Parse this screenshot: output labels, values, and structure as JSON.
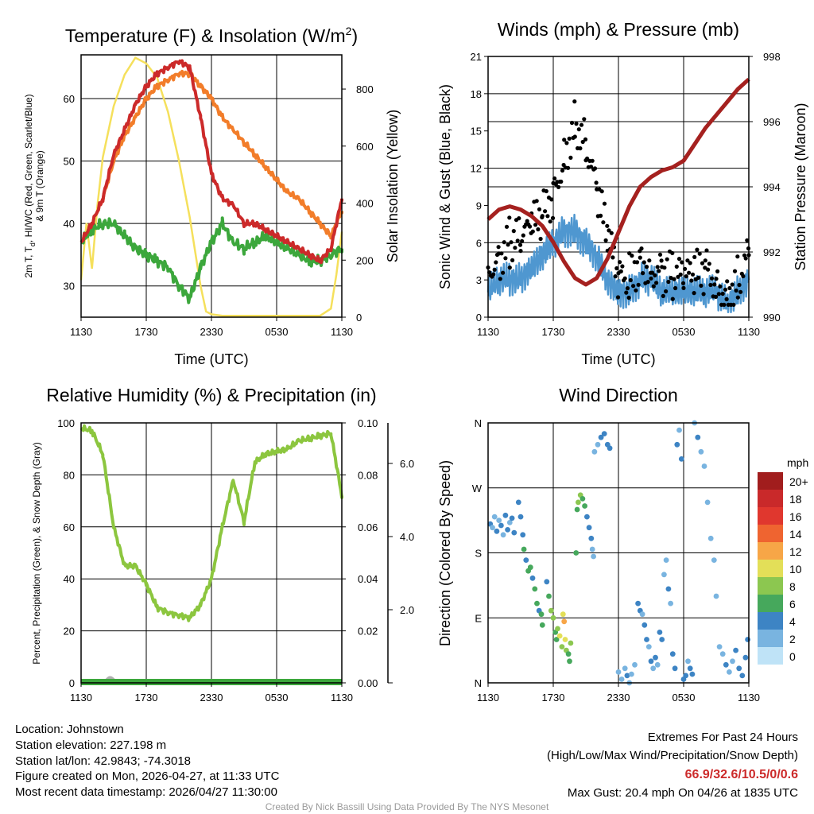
{
  "colors": {
    "temp": "#cc2a2a",
    "heat_index": "#cc2a2a",
    "dewpoint": "#3ca73c",
    "temp9m": "#f27d2a",
    "solar": "#f5e05c",
    "wind": "#4f97d0",
    "gust": "#000000",
    "pressure": "#a5211f",
    "rh": "#8cc63f",
    "precip": "#3ca73c",
    "snow": "#b0b0b0"
  },
  "chart_data": [
    {
      "id": "temperature",
      "type": "line",
      "title": "Temperature (F) & Insolation (W/m",
      "title_sup": "2",
      "title_end": ")",
      "xlabel": "Time (UTC)",
      "ylabel_left_1": "2m T, T",
      "ylabel_left_sub": "d",
      "ylabel_left_2": ", HI/WC (Red, Green, Scarlet/Blue)",
      "ylabel_left_3": "& 9m T (Orange)",
      "ylabel_right": "Solar Insolation (Yellow)",
      "xticks": [
        "1130",
        "1730",
        "2330",
        "0530",
        "1130"
      ],
      "xtick_hours": [
        0,
        6,
        12,
        18,
        24
      ],
      "yticks_left": [
        30,
        40,
        50,
        60
      ],
      "yticks_right": [
        0,
        200,
        400,
        600,
        800
      ],
      "ylim_left": [
        25,
        67
      ],
      "ylim_right": [
        0,
        920
      ],
      "series": [
        {
          "name": "2m T",
          "x": [
            0,
            1,
            2,
            3,
            4,
            5,
            6,
            7,
            8,
            9,
            10,
            11,
            12,
            13,
            14,
            15,
            16,
            17,
            18,
            19,
            20,
            21,
            22,
            23,
            24
          ],
          "values": [
            37,
            40,
            44,
            51,
            55,
            59,
            62,
            64,
            65,
            66,
            65,
            57,
            48,
            44,
            43,
            40,
            40,
            39,
            38,
            37,
            36,
            35,
            34,
            36,
            44
          ]
        },
        {
          "name": "Td",
          "x": [
            0,
            1,
            2,
            3,
            4,
            5,
            6,
            7,
            8,
            9,
            10,
            11,
            12,
            13,
            14,
            15,
            16,
            17,
            18,
            19,
            20,
            21,
            22,
            23,
            24
          ],
          "values": [
            37,
            39,
            40,
            40,
            38,
            36,
            35,
            34,
            33,
            30,
            28,
            33,
            37,
            40,
            37,
            36,
            37,
            38,
            37,
            36,
            35,
            34,
            34,
            35,
            36
          ]
        },
        {
          "name": "9m T",
          "x": [
            0,
            1,
            2,
            3,
            4,
            5,
            6,
            7,
            8,
            9,
            10,
            11,
            12,
            13,
            14,
            15,
            16,
            17,
            18,
            19,
            20,
            21,
            22,
            23,
            24
          ],
          "values": [
            37,
            40,
            44,
            50,
            54,
            57,
            60,
            62,
            63,
            64,
            64,
            62,
            60,
            57,
            55,
            53,
            51,
            49,
            47,
            45,
            44,
            42,
            40,
            38,
            42
          ]
        },
        {
          "name": "Solar",
          "x": [
            0,
            0.5,
            1,
            1.5,
            2,
            3,
            4,
            5,
            6,
            7,
            8,
            9,
            10,
            11,
            11.5,
            12,
            13,
            14,
            15,
            16,
            17,
            18,
            19,
            20,
            21,
            22,
            23,
            23.5,
            24
          ],
          "values": [
            130,
            330,
            170,
            390,
            560,
            740,
            850,
            910,
            890,
            840,
            720,
            550,
            350,
            110,
            20,
            10,
            5,
            5,
            5,
            5,
            5,
            5,
            5,
            5,
            5,
            5,
            30,
            150,
            300
          ]
        }
      ]
    },
    {
      "id": "winds",
      "type": "line",
      "title": "Winds (mph) & Pressure (mb)",
      "xlabel": "Time (UTC)",
      "ylabel_left": "Sonic Wind & Gust (Blue, Black)",
      "ylabel_right": "Station Pressure (Maroon)",
      "xticks": [
        "1130",
        "1730",
        "2330",
        "0530",
        "1130"
      ],
      "yticks_left": [
        0,
        3,
        6,
        9,
        12,
        15,
        18,
        21
      ],
      "yticks_right": [
        990,
        992,
        994,
        996,
        998
      ],
      "ylim_left": [
        0,
        21
      ],
      "ylim_right": [
        990,
        998
      ],
      "series": [
        {
          "name": "Sonic Wind",
          "x": [
            0,
            1,
            2,
            3,
            4,
            5,
            6,
            7,
            8,
            9,
            10,
            11,
            12,
            13,
            14,
            15,
            16,
            17,
            18,
            19,
            20,
            21,
            22,
            23,
            24
          ],
          "values": [
            2,
            3,
            3,
            3,
            4,
            5,
            6,
            7,
            7,
            6,
            5,
            3,
            2,
            2,
            3,
            3,
            2,
            2,
            2,
            2,
            2,
            2,
            1,
            2,
            3
          ]
        },
        {
          "name": "Gust",
          "x": [
            0,
            1,
            2,
            3,
            4,
            5,
            6,
            7,
            8,
            9,
            10,
            11,
            12,
            13,
            14,
            15,
            16,
            17,
            18,
            19,
            20,
            21,
            22,
            23,
            24
          ],
          "values": [
            4,
            5,
            6,
            6,
            7,
            8,
            10,
            13,
            16,
            14,
            10,
            6,
            3,
            3,
            5,
            4,
            4,
            3,
            3,
            3,
            4,
            3,
            2,
            3,
            5
          ]
        },
        {
          "name": "Pressure",
          "x": [
            0,
            1,
            2,
            3,
            4,
            5,
            6,
            7,
            8,
            9,
            10,
            11,
            12,
            13,
            14,
            15,
            16,
            17,
            18,
            19,
            20,
            21,
            22,
            23,
            24
          ],
          "values": [
            993.0,
            993.3,
            993.4,
            993.3,
            993.1,
            992.8,
            992.3,
            991.7,
            991.2,
            991.0,
            991.2,
            991.8,
            992.6,
            993.4,
            994.0,
            994.3,
            994.5,
            994.6,
            994.8,
            995.3,
            995.8,
            996.2,
            996.6,
            997.0,
            997.3
          ]
        }
      ]
    },
    {
      "id": "humidity",
      "type": "line",
      "title": "Relative Humidity (%) & Precipitation (in)",
      "xlabel": "",
      "ylabel_left": "Percent, Precipitation (Green), & Snow Depth (Gray)",
      "xticks": [
        "1130",
        "1730",
        "2330",
        "0530",
        "1130"
      ],
      "yticks_left": [
        0,
        20,
        40,
        60,
        80,
        100
      ],
      "yticks_precip": [
        "0.00",
        "0.02",
        "0.04",
        "0.06",
        "0.08",
        "0.10"
      ],
      "yticks_snow": [
        "2.0",
        "4.0",
        "6.0"
      ],
      "ylim_left": [
        0,
        100
      ],
      "series": [
        {
          "name": "RH",
          "x": [
            0,
            1,
            2,
            3,
            4,
            5,
            6,
            7,
            8,
            9,
            10,
            11,
            12,
            13,
            14,
            15,
            16,
            17,
            18,
            19,
            20,
            21,
            22,
            23,
            24
          ],
          "values": [
            98,
            97,
            88,
            60,
            45,
            45,
            38,
            29,
            27,
            26,
            25,
            30,
            40,
            60,
            78,
            62,
            85,
            88,
            89,
            90,
            93,
            94,
            95,
            96,
            72
          ]
        },
        {
          "name": "Precipitation",
          "x": [
            0,
            24
          ],
          "values": [
            0,
            0
          ]
        },
        {
          "name": "Snow Depth",
          "x": [
            0,
            24
          ],
          "values": [
            0,
            0
          ]
        }
      ]
    },
    {
      "id": "wind_direction",
      "type": "scatter",
      "title": "Wind Direction",
      "ylabel_left": "Direction (Colored By Speed)",
      "xticks": [
        "1130",
        "1730",
        "2330",
        "0530",
        "1130"
      ],
      "yticks_left": [
        "N",
        "E",
        "S",
        "W",
        "N"
      ],
      "ylim_left": [
        0,
        360
      ],
      "legend_title": "mph",
      "legend_labels": [
        "20+",
        "18",
        "16",
        "14",
        "12",
        "10",
        "8",
        "6",
        "4",
        "2",
        "0"
      ],
      "legend_colors": [
        "#a11d1d",
        "#c9292a",
        "#e0372e",
        "#ef6430",
        "#f7a647",
        "#e3df58",
        "#8cc750",
        "#46a85c",
        "#3d84c4",
        "#79b4e0",
        "#bfe3f7"
      ],
      "points": [
        [
          0.2,
          220,
          3
        ],
        [
          0.4,
          215,
          2
        ],
        [
          0.6,
          230,
          2
        ],
        [
          0.8,
          210,
          3
        ],
        [
          1.0,
          225,
          2
        ],
        [
          1.2,
          218,
          3
        ],
        [
          1.4,
          205,
          2
        ],
        [
          1.6,
          232,
          4
        ],
        [
          1.8,
          212,
          3
        ],
        [
          2.0,
          222,
          2
        ],
        [
          2.2,
          228,
          4
        ],
        [
          2.4,
          208,
          3
        ],
        [
          2.8,
          250,
          4
        ],
        [
          3.0,
          230,
          3
        ],
        [
          3.2,
          205,
          4
        ],
        [
          3.3,
          185,
          5
        ],
        [
          3.5,
          170,
          4
        ],
        [
          3.7,
          155,
          5
        ],
        [
          3.9,
          160,
          6
        ],
        [
          4.1,
          145,
          4
        ],
        [
          4.3,
          130,
          5
        ],
        [
          4.5,
          110,
          6
        ],
        [
          4.7,
          100,
          3
        ],
        [
          4.9,
          95,
          6
        ],
        [
          5.0,
          80,
          5
        ],
        [
          5.4,
          140,
          4
        ],
        [
          5.6,
          120,
          6
        ],
        [
          5.8,
          100,
          7
        ],
        [
          6.0,
          90,
          8
        ],
        [
          6.2,
          70,
          6
        ],
        [
          6.3,
          60,
          5
        ],
        [
          6.4,
          75,
          7
        ],
        [
          6.6,
          65,
          9
        ],
        [
          6.8,
          50,
          8
        ],
        [
          6.9,
          95,
          10
        ],
        [
          7.0,
          85,
          11
        ],
        [
          7.1,
          60,
          9
        ],
        [
          7.2,
          45,
          7
        ],
        [
          7.4,
          40,
          6
        ],
        [
          7.5,
          30,
          6
        ],
        [
          7.6,
          55,
          8
        ],
        [
          8.1,
          180,
          5
        ],
        [
          8.2,
          240,
          6
        ],
        [
          8.3,
          250,
          7
        ],
        [
          8.5,
          260,
          8
        ],
        [
          8.7,
          255,
          6
        ],
        [
          8.9,
          245,
          5
        ],
        [
          9.1,
          230,
          4
        ],
        [
          9.3,
          215,
          3
        ],
        [
          9.5,
          200,
          3
        ],
        [
          9.6,
          185,
          2
        ],
        [
          9.7,
          175,
          2
        ],
        [
          9.8,
          320,
          2
        ],
        [
          10.1,
          330,
          2
        ],
        [
          10.4,
          340,
          3
        ],
        [
          10.7,
          345,
          3
        ],
        [
          11.0,
          330,
          4
        ],
        [
          11.2,
          325,
          3
        ],
        [
          12.0,
          15,
          2
        ],
        [
          12.3,
          5,
          2
        ],
        [
          12.6,
          20,
          2
        ],
        [
          12.8,
          10,
          3
        ],
        [
          13.0,
          0,
          2
        ],
        [
          13.2,
          12,
          2
        ],
        [
          13.5,
          25,
          2
        ],
        [
          13.8,
          110,
          4
        ],
        [
          14.0,
          100,
          3
        ],
        [
          14.2,
          95,
          2
        ],
        [
          14.4,
          80,
          3
        ],
        [
          14.6,
          60,
          4
        ],
        [
          14.8,
          50,
          2
        ],
        [
          15.0,
          30,
          3
        ],
        [
          15.2,
          20,
          2
        ],
        [
          15.4,
          35,
          3
        ],
        [
          15.6,
          25,
          2
        ],
        [
          15.8,
          70,
          3
        ],
        [
          16.0,
          60,
          4
        ],
        [
          16.2,
          150,
          2
        ],
        [
          16.4,
          170,
          2
        ],
        [
          16.6,
          130,
          3
        ],
        [
          16.8,
          110,
          2
        ],
        [
          17.0,
          40,
          4
        ],
        [
          17.2,
          20,
          3
        ],
        [
          17.4,
          330,
          3
        ],
        [
          17.6,
          350,
          2
        ],
        [
          17.8,
          310,
          3
        ],
        [
          18.0,
          5,
          3
        ],
        [
          18.2,
          10,
          4
        ],
        [
          18.4,
          30,
          2
        ],
        [
          18.6,
          20,
          3
        ],
        [
          18.8,
          12,
          4
        ],
        [
          19.0,
          360,
          2
        ],
        [
          19.3,
          340,
          3
        ],
        [
          19.6,
          320,
          2
        ],
        [
          19.9,
          300,
          2
        ],
        [
          20.2,
          250,
          1
        ],
        [
          20.5,
          200,
          1
        ],
        [
          20.8,
          170,
          1
        ],
        [
          21.0,
          120,
          1
        ],
        [
          21.3,
          50,
          1
        ],
        [
          21.6,
          40,
          2
        ],
        [
          21.9,
          25,
          3
        ],
        [
          22.2,
          15,
          2
        ],
        [
          22.5,
          30,
          2
        ],
        [
          22.8,
          45,
          3
        ],
        [
          23.1,
          20,
          4
        ],
        [
          23.4,
          10,
          4
        ],
        [
          23.7,
          35,
          3
        ],
        [
          23.9,
          60,
          3
        ]
      ]
    }
  ],
  "footer": {
    "location": "Location: Johnstown",
    "elevation": "Station elevation: 227.198 m",
    "latlon": "Station lat/lon: 42.9843; -74.3018",
    "created": "Figure created on Mon, 2026-04-27, at 11:33 UTC",
    "timestamp": "Most recent data timestamp: 2026/04/27 11:30:00"
  },
  "extremes": {
    "heading": "Extremes For Past 24 Hours",
    "subheading": "(High/Low/Max Wind/Precipitation/Snow Depth)",
    "values": "66.9/32.6/10.5/0/0.6",
    "max_gust": "Max Gust: 20.4 mph On 04/26 at 1835 UTC"
  },
  "credit": "Created By Nick Bassill Using Data Provided By The NYS Mesonet"
}
